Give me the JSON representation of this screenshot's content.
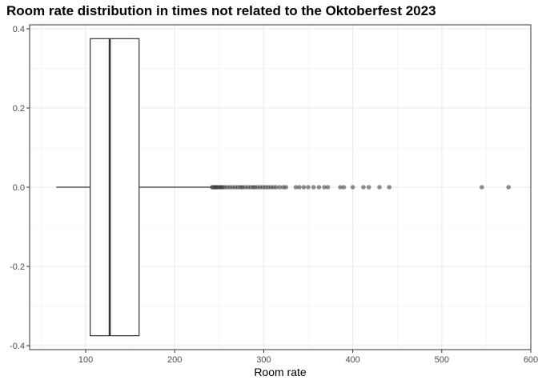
{
  "chart_data": {
    "type": "boxplot",
    "title": "Room rate distribution in times not related to the Oktoberfest 2023",
    "xlabel": "Room rate",
    "ylabel": "",
    "xlim": [
      37,
      600
    ],
    "ylim": [
      -0.41,
      0.41
    ],
    "x_ticks": [
      100,
      200,
      300,
      400,
      500,
      600
    ],
    "y_ticks": [
      -0.4,
      -0.2,
      0.0,
      0.2,
      0.4
    ],
    "y_tick_labels": [
      "-0.4",
      "-0.2",
      "0.0",
      "0.2",
      "0.4"
    ],
    "grid": true,
    "box": {
      "whisker_low": 67,
      "q1": 105,
      "median": 127,
      "q3": 160,
      "whisker_high": 241,
      "y_center": 0,
      "half_width": 0.375
    },
    "outliers": [
      242,
      243,
      245,
      246,
      247,
      249,
      251,
      252,
      254,
      256,
      259,
      262,
      265,
      268,
      271,
      274,
      276,
      279,
      282,
      285,
      288,
      290,
      293,
      296,
      299,
      302,
      305,
      308,
      311,
      314,
      318,
      322,
      325,
      336,
      340,
      345,
      350,
      356,
      362,
      368,
      372,
      386,
      390,
      400,
      412,
      418,
      430,
      441,
      545,
      575
    ]
  }
}
